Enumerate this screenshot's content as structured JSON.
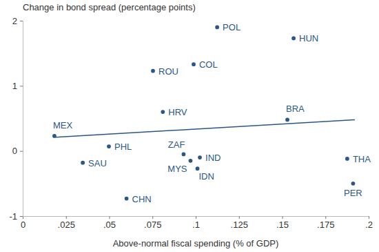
{
  "chart_data": {
    "type": "scatter",
    "y_label": "Change in bond spread (percentage points)",
    "x_label": "Above-normal fiscal spending (% of GDP)",
    "points": {
      "labels": [
        "MEX",
        "PHL",
        "SAU",
        "CHN",
        "ROU",
        "HRV",
        "ZAF",
        "MYS",
        "IND",
        "IDN",
        "COL",
        "POL",
        "HUN",
        "BRA",
        "THA",
        "PER"
      ],
      "x": [
        0.0183,
        0.0498,
        0.0347,
        0.06,
        0.0753,
        0.081,
        0.093,
        0.097,
        0.1024,
        0.101,
        0.0988,
        0.1124,
        0.1566,
        0.153,
        0.1876,
        0.191
      ],
      "y": [
        0.23,
        0.07,
        -0.18,
        -0.73,
        1.23,
        0.6,
        -0.05,
        -0.15,
        -0.1,
        -0.27,
        1.33,
        1.9,
        1.73,
        0.48,
        -0.12,
        -0.5
      ]
    },
    "trend_line": {
      "x": [
        0.019,
        0.192
      ],
      "y": [
        0.21,
        0.48
      ]
    },
    "color": "#2a5783",
    "marker": "circle",
    "xlim": [
      0,
      0.2
    ],
    "ylim": [
      -1,
      2
    ],
    "xticks": [
      0,
      {
        "value": 0.025,
        "label": ".025"
      },
      {
        "value": 0.05,
        "label": ".05"
      },
      {
        "value": 0.075,
        "label": ".075"
      },
      {
        "value": 0.1,
        "label": ".1"
      },
      {
        "value": 0.125,
        "label": ".125"
      },
      {
        "value": 0.15,
        "label": ".15"
      },
      {
        "value": 0.175,
        "label": ".175"
      },
      {
        "value": 0.2,
        "label": ".2"
      }
    ],
    "yticks": [
      -1,
      0,
      1,
      2
    ],
    "grid": false
  }
}
